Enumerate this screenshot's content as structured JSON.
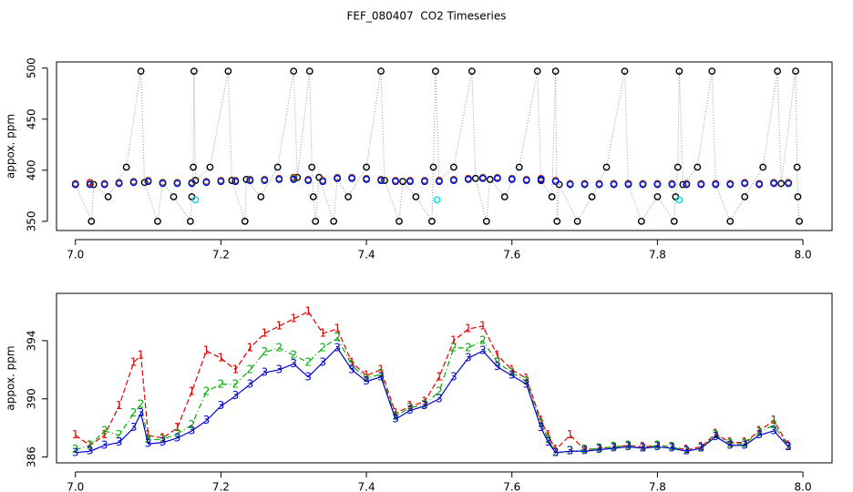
{
  "chart_data": [
    {
      "type": "scatter",
      "title": "FEF_080407  CO2 Timeseries",
      "ylabel": "appox. ppm",
      "xlim": [
        6.974,
        8.04
      ],
      "xticks": [
        {
          "value": 7.0,
          "label": "7.0"
        },
        7.2,
        7.4,
        7.6,
        7.8,
        {
          "value": 8.0,
          "label": "8.0"
        }
      ],
      "ylim": [
        341,
        506
      ],
      "yticks": [
        350,
        400,
        450,
        500
      ],
      "series": [
        {
          "color": "#000000",
          "line_color": "#999999",
          "linestyle": "dotted",
          "x": [
            7.0,
            7.022,
            7.025,
            7.045,
            7.07,
            7.09,
            7.095,
            7.113,
            7.12,
            7.135,
            7.158,
            7.16,
            7.162,
            7.163,
            7.165,
            7.185,
            7.21,
            7.215,
            7.233,
            7.235,
            7.255,
            7.278,
            7.3,
            7.305,
            7.322,
            7.325,
            7.327,
            7.33,
            7.335,
            7.355,
            7.36,
            7.375,
            7.4,
            7.42,
            7.425,
            7.445,
            7.45,
            7.468,
            7.49,
            7.492,
            7.495,
            7.5,
            7.52,
            7.545,
            7.55,
            7.565,
            7.57,
            7.59,
            7.61,
            7.635,
            7.64,
            7.655,
            7.66,
            7.662,
            7.665,
            7.69,
            7.71,
            7.73,
            7.755,
            7.76,
            7.778,
            7.8,
            7.823,
            7.825,
            7.828,
            7.83,
            7.835,
            7.855,
            7.875,
            7.88,
            7.9,
            7.92,
            7.945,
            7.965,
            7.97,
            7.99,
            7.992,
            7.993,
            7.995
          ],
          "values": [
            386,
            350,
            386,
            374,
            403,
            497,
            388,
            350,
            388,
            374,
            350,
            374,
            403,
            497,
            390,
            403,
            497,
            390,
            350,
            391,
            374,
            403,
            497,
            393,
            497,
            403,
            374,
            350,
            393,
            350,
            392,
            374,
            403,
            497,
            390,
            350,
            389,
            374,
            350,
            403,
            497,
            390,
            403,
            497,
            392,
            350,
            391,
            374,
            403,
            497,
            390,
            374,
            497,
            350,
            386,
            350,
            374,
            403,
            497,
            387,
            350,
            374,
            350,
            374,
            403,
            497,
            386,
            403,
            497,
            387,
            350,
            374,
            403,
            497,
            387,
            497,
            403,
            374,
            350
          ]
        },
        {
          "color": "#ff0000",
          "linestyle": "none",
          "x": [
            7.0,
            7.02,
            7.04,
            7.06,
            7.08,
            7.1,
            7.12,
            7.14,
            7.16,
            7.18,
            7.2,
            7.22,
            7.24,
            7.26,
            7.28,
            7.3,
            7.32,
            7.34,
            7.36,
            7.38,
            7.4,
            7.42,
            7.44,
            7.46,
            7.48,
            7.5,
            7.52,
            7.54,
            7.56,
            7.58,
            7.6,
            7.62,
            7.64,
            7.66,
            7.68,
            7.7,
            7.72,
            7.74,
            7.76,
            7.78,
            7.8,
            7.82,
            7.84,
            7.86,
            7.88,
            7.9,
            7.92,
            7.94,
            7.96,
            7.98
          ],
          "values": [
            387,
            388,
            387,
            388,
            389,
            390,
            388,
            388,
            388,
            389,
            390,
            390,
            391,
            391,
            392,
            393,
            391,
            390,
            393,
            393,
            392,
            391,
            390,
            390,
            390,
            390,
            391,
            392,
            393,
            393,
            392,
            391,
            392,
            390,
            387,
            387,
            387,
            387,
            387,
            387,
            387,
            387,
            387,
            387,
            387,
            387,
            388,
            387,
            388,
            388
          ]
        },
        {
          "color": "#00bb00",
          "linestyle": "none",
          "x": [
            7.0,
            7.02,
            7.04,
            7.06,
            7.08,
            7.1,
            7.12,
            7.14,
            7.16,
            7.18,
            7.2,
            7.22,
            7.24,
            7.26,
            7.28,
            7.3,
            7.32,
            7.34,
            7.36,
            7.38,
            7.4,
            7.42,
            7.44,
            7.46,
            7.48,
            7.5,
            7.52,
            7.54,
            7.56,
            7.58,
            7.6,
            7.62,
            7.64,
            7.66,
            7.68,
            7.7,
            7.72,
            7.74,
            7.76,
            7.78,
            7.8,
            7.82,
            7.84,
            7.86,
            7.88,
            7.9,
            7.92,
            7.94,
            7.96,
            7.98
          ],
          "values": [
            386.5,
            386.5,
            386.5,
            387.5,
            388.5,
            389.5,
            387.5,
            387.5,
            387.5,
            388.5,
            389.5,
            389.5,
            390.5,
            390.5,
            391.5,
            392,
            390.5,
            389.5,
            392.5,
            392.5,
            391.5,
            390.5,
            389.5,
            389.5,
            389.5,
            389.5,
            390.5,
            391.5,
            392.5,
            392.5,
            391.5,
            390.5,
            391.5,
            389.5,
            386.5,
            386.5,
            386.5,
            386.5,
            386.5,
            386.5,
            386.5,
            386.5,
            386.5,
            386.5,
            386.5,
            386.5,
            387.5,
            386.5,
            387.5,
            387.5
          ]
        },
        {
          "color": "#0000ff",
          "linestyle": "none",
          "x": [
            7.0,
            7.02,
            7.04,
            7.06,
            7.08,
            7.1,
            7.12,
            7.14,
            7.16,
            7.18,
            7.2,
            7.22,
            7.24,
            7.26,
            7.28,
            7.3,
            7.32,
            7.34,
            7.36,
            7.38,
            7.4,
            7.42,
            7.44,
            7.46,
            7.48,
            7.5,
            7.52,
            7.54,
            7.56,
            7.58,
            7.6,
            7.62,
            7.64,
            7.66,
            7.68,
            7.7,
            7.72,
            7.74,
            7.76,
            7.78,
            7.8,
            7.82,
            7.84,
            7.86,
            7.88,
            7.9,
            7.92,
            7.94,
            7.96,
            7.98
          ],
          "values": [
            386,
            386,
            386,
            387,
            388,
            389,
            387,
            387,
            387,
            388,
            389,
            389,
            390,
            390,
            391,
            391,
            390,
            389,
            392,
            392,
            391,
            390,
            389,
            389,
            389,
            389,
            390,
            391,
            392,
            392,
            391,
            390,
            391,
            389,
            386,
            386,
            386,
            386,
            386,
            386,
            386,
            386,
            386,
            386,
            386,
            386,
            387,
            386,
            387,
            387
          ]
        },
        {
          "color": "#00dddd",
          "linestyle": "none",
          "x": [
            7.165,
            7.497,
            7.83
          ],
          "values": [
            371,
            371,
            371
          ]
        }
      ]
    },
    {
      "type": "line",
      "ylabel": "appox. ppm",
      "xlim": [
        6.974,
        8.04
      ],
      "xticks": [
        {
          "value": 7.0,
          "label": "7.0"
        },
        7.2,
        7.4,
        7.6,
        7.8,
        {
          "value": 8.0,
          "label": "8.0"
        }
      ],
      "ylim": [
        385.6,
        397.25
      ],
      "yticks": [
        386,
        390,
        394
      ],
      "x": [
        7.0,
        7.02,
        7.04,
        7.06,
        7.08,
        7.09,
        7.1,
        7.12,
        7.14,
        7.16,
        7.18,
        7.2,
        7.22,
        7.24,
        7.26,
        7.28,
        7.3,
        7.32,
        7.34,
        7.36,
        7.38,
        7.4,
        7.42,
        7.44,
        7.46,
        7.48,
        7.5,
        7.52,
        7.54,
        7.56,
        7.58,
        7.6,
        7.62,
        7.64,
        7.65,
        7.66,
        7.68,
        7.7,
        7.72,
        7.74,
        7.76,
        7.78,
        7.8,
        7.82,
        7.84,
        7.86,
        7.88,
        7.9,
        7.92,
        7.94,
        7.96,
        7.98
      ],
      "series": [
        {
          "marker": "1",
          "color": "#dd0000",
          "linestyle": "dashed",
          "values": [
            387.5,
            386.8,
            387.5,
            389.5,
            392.5,
            393.0,
            387.5,
            387.3,
            388.0,
            390.5,
            393.3,
            392.8,
            392.0,
            393.5,
            394.5,
            395.0,
            395.5,
            396.0,
            394.5,
            394.8,
            392.5,
            391.6,
            392.0,
            389.0,
            389.5,
            389.8,
            391.5,
            394.0,
            394.8,
            395.0,
            393.0,
            392.0,
            391.4,
            388.5,
            387.5,
            386.5,
            387.5,
            386.5,
            386.6,
            386.7,
            386.8,
            386.7,
            386.8,
            386.7,
            386.5,
            386.7,
            387.6,
            387.0,
            387.0,
            387.8,
            388.5,
            386.8
          ]
        },
        {
          "marker": "2",
          "color": "#00aa00",
          "linestyle": "dashdot",
          "values": [
            386.5,
            386.8,
            387.8,
            387.5,
            389.0,
            389.6,
            387.2,
            387.2,
            387.6,
            388.2,
            390.5,
            391.0,
            391.0,
            392.0,
            393.2,
            393.5,
            393.0,
            392.5,
            393.5,
            394.2,
            392.3,
            391.4,
            391.7,
            388.8,
            389.4,
            389.6,
            390.5,
            393.5,
            393.5,
            394.0,
            392.5,
            391.8,
            391.2,
            388.3,
            387.2,
            386.3,
            386.4,
            386.5,
            386.6,
            386.7,
            386.8,
            386.6,
            386.8,
            386.7,
            386.4,
            386.6,
            387.5,
            386.9,
            386.9,
            387.7,
            388.2,
            386.7
          ]
        },
        {
          "marker": "3",
          "color": "#0000cc",
          "linestyle": "solid",
          "values": [
            386.3,
            386.4,
            386.8,
            387.0,
            388.0,
            389.0,
            386.9,
            387.0,
            387.3,
            387.8,
            388.5,
            389.5,
            390.2,
            391.0,
            391.8,
            392.0,
            392.4,
            391.5,
            392.5,
            393.5,
            392.0,
            391.2,
            391.5,
            388.6,
            389.2,
            389.5,
            390.0,
            391.5,
            392.8,
            393.3,
            392.2,
            391.6,
            391.0,
            388.0,
            387.0,
            386.3,
            386.4,
            386.4,
            386.5,
            386.6,
            386.7,
            386.6,
            386.7,
            386.6,
            386.4,
            386.6,
            387.4,
            386.8,
            386.8,
            387.5,
            387.8,
            386.7
          ]
        }
      ]
    }
  ]
}
